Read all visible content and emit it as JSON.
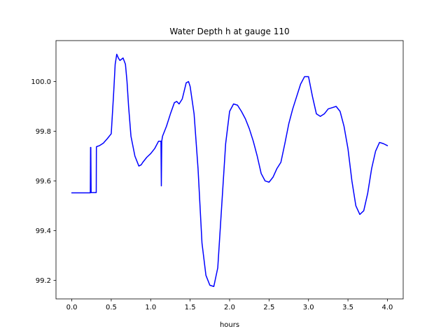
{
  "chart_data": {
    "type": "line",
    "title": "Water Depth h at gauge 110",
    "xlabel": "hours",
    "ylabel": "",
    "xlim": [
      -0.2,
      4.2
    ],
    "ylim": [
      99.125,
      100.165
    ],
    "xticks": [
      0.0,
      0.5,
      1.0,
      1.5,
      2.0,
      2.5,
      3.0,
      3.5,
      4.0
    ],
    "xtick_labels": [
      "0.0",
      "0.5",
      "1.0",
      "1.5",
      "2.0",
      "2.5",
      "3.0",
      "3.5",
      "4.0"
    ],
    "yticks": [
      99.2,
      99.4,
      99.6,
      99.8,
      100.0
    ],
    "ytick_labels": [
      "99.2",
      "99.4",
      "99.6",
      "99.8",
      "100.0"
    ],
    "grid": false,
    "series": [
      {
        "color": "#0000ff",
        "x": [
          0.0,
          0.1,
          0.2,
          0.235,
          0.238,
          0.241,
          0.245,
          0.25,
          0.3,
          0.31,
          0.312,
          0.315,
          0.35,
          0.4,
          0.45,
          0.5,
          0.53,
          0.55,
          0.57,
          0.59,
          0.61,
          0.63,
          0.65,
          0.68,
          0.7,
          0.72,
          0.75,
          0.8,
          0.85,
          0.88,
          0.9,
          0.95,
          1.0,
          1.05,
          1.1,
          1.13,
          1.135,
          1.14,
          1.145,
          1.15,
          1.2,
          1.25,
          1.3,
          1.33,
          1.36,
          1.4,
          1.45,
          1.48,
          1.5,
          1.55,
          1.6,
          1.65,
          1.7,
          1.75,
          1.8,
          1.85,
          1.9,
          1.95,
          2.0,
          2.05,
          2.1,
          2.15,
          2.2,
          2.25,
          2.3,
          2.35,
          2.4,
          2.45,
          2.5,
          2.55,
          2.6,
          2.65,
          2.7,
          2.75,
          2.8,
          2.85,
          2.9,
          2.95,
          3.0,
          3.05,
          3.1,
          3.15,
          3.2,
          3.25,
          3.3,
          3.35,
          3.4,
          3.45,
          3.5,
          3.55,
          3.6,
          3.65,
          3.7,
          3.75,
          3.8,
          3.85,
          3.9,
          3.95,
          4.0
        ],
        "y": [
          99.552,
          99.552,
          99.552,
          99.552,
          99.735,
          99.735,
          99.553,
          99.553,
          99.553,
          99.553,
          99.737,
          99.738,
          99.742,
          99.752,
          99.77,
          99.79,
          99.95,
          100.07,
          100.11,
          100.095,
          100.085,
          100.09,
          100.095,
          100.07,
          100.0,
          99.9,
          99.78,
          99.7,
          99.66,
          99.665,
          99.675,
          99.695,
          99.71,
          99.73,
          99.76,
          99.76,
          99.58,
          99.76,
          99.77,
          99.78,
          99.82,
          99.87,
          99.915,
          99.92,
          99.91,
          99.93,
          99.995,
          100.0,
          99.98,
          99.87,
          99.65,
          99.35,
          99.22,
          99.18,
          99.175,
          99.25,
          99.5,
          99.75,
          99.88,
          99.91,
          99.905,
          99.88,
          99.85,
          99.81,
          99.76,
          99.7,
          99.63,
          99.6,
          99.595,
          99.615,
          99.65,
          99.675,
          99.75,
          99.83,
          99.89,
          99.94,
          99.99,
          100.02,
          100.02,
          99.94,
          99.87,
          99.86,
          99.87,
          99.89,
          99.895,
          99.9,
          99.88,
          99.82,
          99.73,
          99.6,
          99.5,
          99.465,
          99.48,
          99.55,
          99.65,
          99.72,
          99.755,
          99.75,
          99.742
        ]
      }
    ]
  }
}
